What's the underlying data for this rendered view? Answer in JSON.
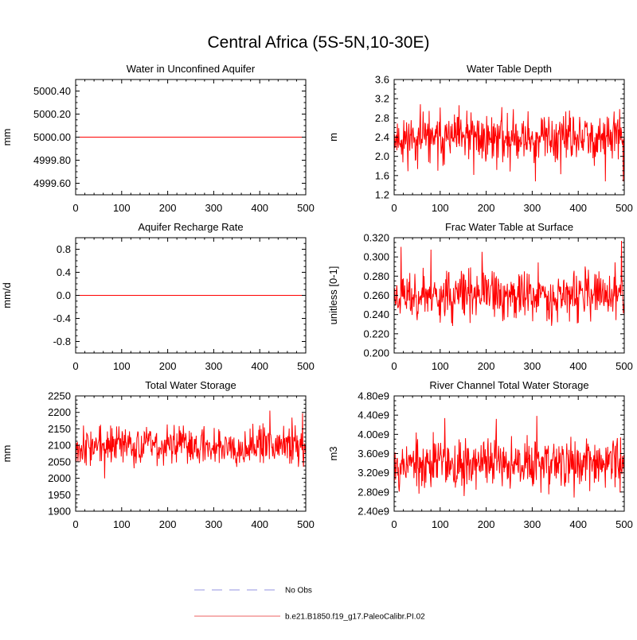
{
  "figure": {
    "title": "Central Africa (5S-5N,10-30E)"
  },
  "legend": {
    "placement": "bottom-center",
    "entries": [
      {
        "label": "No Obs",
        "color": "#a9a9e6",
        "dash": true
      },
      {
        "label": "b.e21.B1850.f19_g17.PaleoCalibr.PI.02",
        "color": "#f08080",
        "dash": false
      }
    ]
  },
  "chart_data": [
    {
      "type": "line",
      "title": "Water in Unconfined Aquifer",
      "ylabel": "mm",
      "xlim": [
        0,
        500
      ],
      "ylim": [
        4999.5,
        5000.5
      ],
      "x_ticks": [
        "0",
        "100",
        "200",
        "300",
        "400",
        "500"
      ],
      "y_ticks": [
        {
          "v": 4999.6,
          "label": "4999.60"
        },
        {
          "v": 4999.8,
          "label": "4999.80"
        },
        {
          "v": 5000.0,
          "label": "5000.00"
        },
        {
          "v": 5000.2,
          "label": "5000.20"
        },
        {
          "v": 5000.4,
          "label": "5000.40"
        }
      ],
      "series": [
        {
          "color": "#ff0000",
          "constant": 5000.0,
          "n": 500
        }
      ]
    },
    {
      "type": "line",
      "title": "Water Table Depth",
      "ylabel": "m",
      "xlim": [
        0,
        500
      ],
      "ylim": [
        1.2,
        3.6
      ],
      "x_ticks": [
        "0",
        "100",
        "200",
        "300",
        "400",
        "500"
      ],
      "y_ticks": [
        {
          "v": 1.2,
          "label": "1.2"
        },
        {
          "v": 1.6,
          "label": "1.6"
        },
        {
          "v": 2.0,
          "label": "2.0"
        },
        {
          "v": 2.4,
          "label": "2.4"
        },
        {
          "v": 2.8,
          "label": "2.8"
        },
        {
          "v": 3.2,
          "label": "3.2"
        },
        {
          "v": 3.6,
          "label": "3.6"
        }
      ],
      "series": [
        {
          "color": "#ff0000",
          "mean": 2.38,
          "amp": 0.32,
          "min": 1.48,
          "max": 3.42,
          "seed": 11,
          "n": 500
        }
      ]
    },
    {
      "type": "line",
      "title": "Aquifer Recharge Rate",
      "ylabel": "mm/d",
      "xlim": [
        0,
        500
      ],
      "ylim": [
        -1.0,
        1.0
      ],
      "x_ticks": [
        "0",
        "100",
        "200",
        "300",
        "400",
        "500"
      ],
      "y_ticks": [
        {
          "v": -0.8,
          "label": "-0.8"
        },
        {
          "v": -0.4,
          "label": "-0.4"
        },
        {
          "v": 0.0,
          "label": "0.0"
        },
        {
          "v": 0.4,
          "label": "0.4"
        },
        {
          "v": 0.8,
          "label": "0.8"
        }
      ],
      "series": [
        {
          "color": "#ff0000",
          "constant": 0.0,
          "n": 500
        }
      ]
    },
    {
      "type": "line",
      "title": "Frac Water Table at Surface",
      "ylabel": "unitless [0-1]",
      "xlim": [
        0,
        500
      ],
      "ylim": [
        0.2,
        0.32
      ],
      "x_ticks": [
        "0",
        "100",
        "200",
        "300",
        "400",
        "500"
      ],
      "y_ticks": [
        {
          "v": 0.2,
          "label": "0.200"
        },
        {
          "v": 0.22,
          "label": "0.220"
        },
        {
          "v": 0.24,
          "label": "0.240"
        },
        {
          "v": 0.26,
          "label": "0.260"
        },
        {
          "v": 0.28,
          "label": "0.280"
        },
        {
          "v": 0.3,
          "label": "0.300"
        },
        {
          "v": 0.32,
          "label": "0.320"
        }
      ],
      "series": [
        {
          "color": "#ff0000",
          "mean": 0.26,
          "amp": 0.016,
          "min": 0.208,
          "max": 0.318,
          "seed": 23,
          "n": 500
        }
      ]
    },
    {
      "type": "line",
      "title": "Total Water Storage",
      "ylabel": "mm",
      "xlim": [
        0,
        500
      ],
      "ylim": [
        1900,
        2250
      ],
      "x_ticks": [
        "0",
        "100",
        "200",
        "300",
        "400",
        "500"
      ],
      "y_ticks": [
        {
          "v": 1900,
          "label": "1900"
        },
        {
          "v": 1950,
          "label": "1950"
        },
        {
          "v": 2000,
          "label": "2000"
        },
        {
          "v": 2050,
          "label": "2050"
        },
        {
          "v": 2100,
          "label": "2100"
        },
        {
          "v": 2150,
          "label": "2150"
        },
        {
          "v": 2200,
          "label": "2200"
        },
        {
          "v": 2250,
          "label": "2250"
        }
      ],
      "series": [
        {
          "color": "#ff0000",
          "mean": 2100,
          "amp": 36,
          "min": 1932,
          "max": 2232,
          "seed": 37,
          "n": 500
        }
      ]
    },
    {
      "type": "line",
      "title": "River Channel Total Water Storage",
      "ylabel": "m3",
      "xlim": [
        0,
        500
      ],
      "ylim": [
        2400000000,
        4800000000
      ],
      "x_ticks": [
        "0",
        "100",
        "200",
        "300",
        "400",
        "500"
      ],
      "y_ticks": [
        {
          "v": 2400000000,
          "label": "2.40e9"
        },
        {
          "v": 2800000000,
          "label": "2.80e9"
        },
        {
          "v": 3200000000,
          "label": "3.20e9"
        },
        {
          "v": 3600000000,
          "label": "3.60e9"
        },
        {
          "v": 4000000000,
          "label": "4.00e9"
        },
        {
          "v": 4400000000,
          "label": "4.40e9"
        },
        {
          "v": 4800000000,
          "label": "4.80e9"
        }
      ],
      "series": [
        {
          "color": "#ff0000",
          "mean": 3400000000,
          "amp": 320000000,
          "min": 2460000000,
          "max": 4660000000,
          "seed": 53,
          "n": 500
        }
      ]
    }
  ]
}
